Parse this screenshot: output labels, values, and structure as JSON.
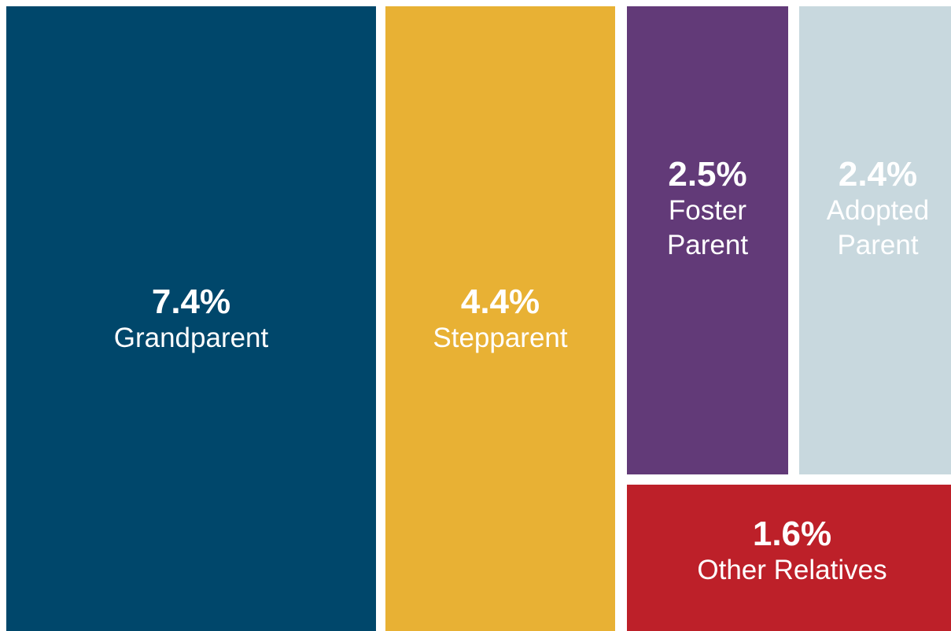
{
  "chart_data": {
    "type": "treemap",
    "categories": [
      "Grandparent",
      "Stepparent",
      "Foster Parent",
      "Adopted Parent",
      "Other Relatives"
    ],
    "values": [
      7.4,
      4.4,
      2.5,
      2.4,
      1.6
    ],
    "value_labels": [
      "7.4%",
      "4.4%",
      "2.5%",
      "2.4%",
      "1.6%"
    ],
    "colors": [
      "#00476b",
      "#e8b134",
      "#623a78",
      "#c8d8de",
      "#bd2029"
    ]
  }
}
